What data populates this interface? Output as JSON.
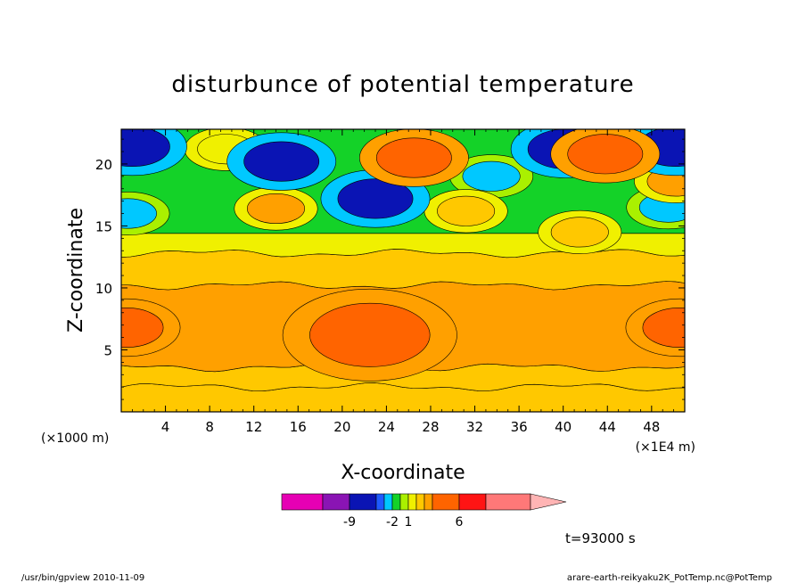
{
  "chart_data": {
    "type": "heatmap",
    "title": "disturbunce of potential temperature",
    "xlabel": "X-coordinate",
    "ylabel": "Z-coordinate",
    "x_unit_left": "(×1000 m)",
    "x_unit_right": "(×1E4 m)",
    "xlim": [
      0,
      51
    ],
    "ylim": [
      0,
      22.8
    ],
    "x_ticks": [
      4,
      8,
      12,
      16,
      20,
      24,
      28,
      32,
      36,
      40,
      44,
      48
    ],
    "y_ticks": [
      5,
      10,
      15,
      20
    ],
    "time_label": "t=93000 s",
    "colorbar": {
      "colors": [
        "#e600b4",
        "#8a14b4",
        "#0a14b4",
        "#1e5aff",
        "#00c8ff",
        "#14d228",
        "#aaf000",
        "#f0f000",
        "#ffc800",
        "#ffa000",
        "#ff6400",
        "#ff1414",
        "#ff7878"
      ],
      "overflow_color": "#ffb4b4",
      "tick_labels": [
        "-9",
        "-2",
        "1",
        "6"
      ],
      "tick_positions": [
        -9,
        -2,
        1,
        6
      ]
    },
    "bands": [
      {
        "z_bottom": 0.0,
        "z_top": 2.0,
        "level": 2,
        "color": "#ffc800"
      },
      {
        "z_bottom": 2.0,
        "z_top": 3.6,
        "level": 2,
        "color": "#ffc800"
      },
      {
        "z_bottom": 3.6,
        "z_top": 10.2,
        "level": 3,
        "color": "#ffa000"
      },
      {
        "z_bottom": 10.2,
        "z_top": 12.8,
        "level": 2,
        "color": "#ffc800"
      },
      {
        "z_bottom": 12.8,
        "z_top": 14.4,
        "level": 1,
        "color": "#f0f000"
      },
      {
        "z_bottom": 14.4,
        "z_top": 22.8,
        "level": -1,
        "color": "#14d228"
      }
    ],
    "features": [
      {
        "x": 22.5,
        "z": 6.2,
        "level": 4,
        "color": "#ff6400"
      },
      {
        "x": 0.4,
        "z": 6.8,
        "level": 4,
        "color": "#ff6400"
      },
      {
        "x": 50.6,
        "z": 6.8,
        "level": 4,
        "color": "#ff6400"
      },
      {
        "x": 14.5,
        "z": 20.2,
        "level": -4,
        "color": "#0a14b4"
      },
      {
        "x": 1.0,
        "z": 21.4,
        "level": -4,
        "color": "#0a14b4"
      },
      {
        "x": 50.2,
        "z": 21.4,
        "level": -4,
        "color": "#0a14b4"
      },
      {
        "x": 23.0,
        "z": 17.2,
        "level": -4,
        "color": "#0a14b4"
      },
      {
        "x": 40.2,
        "z": 21.2,
        "level": -4,
        "color": "#0a14b4"
      },
      {
        "x": 26.5,
        "z": 20.5,
        "level": 4,
        "color": "#ff6400"
      },
      {
        "x": 43.8,
        "z": 20.8,
        "level": 4,
        "color": "#ff6400"
      },
      {
        "x": 14.0,
        "z": 16.4,
        "level": 3,
        "color": "#ffa000"
      },
      {
        "x": 50.2,
        "z": 18.6,
        "level": 3,
        "color": "#ffa000"
      },
      {
        "x": 33.5,
        "z": 19.0,
        "level": -2,
        "color": "#00c8ff"
      },
      {
        "x": 0.6,
        "z": 16.0,
        "level": -2,
        "color": "#00c8ff"
      },
      {
        "x": 49.5,
        "z": 16.5,
        "level": -2,
        "color": "#00c8ff"
      },
      {
        "x": 9.5,
        "z": 21.2,
        "level": 1,
        "color": "#f0f000"
      },
      {
        "x": 31.2,
        "z": 16.2,
        "level": 2,
        "color": "#ffc800"
      },
      {
        "x": 41.5,
        "z": 14.5,
        "level": 2,
        "color": "#ffc800"
      }
    ]
  },
  "footer": {
    "left": "/usr/bin/gpview  2010-11-09",
    "right": "arare-earth-reikyaku2K_PotTemp.nc@PotTemp"
  }
}
